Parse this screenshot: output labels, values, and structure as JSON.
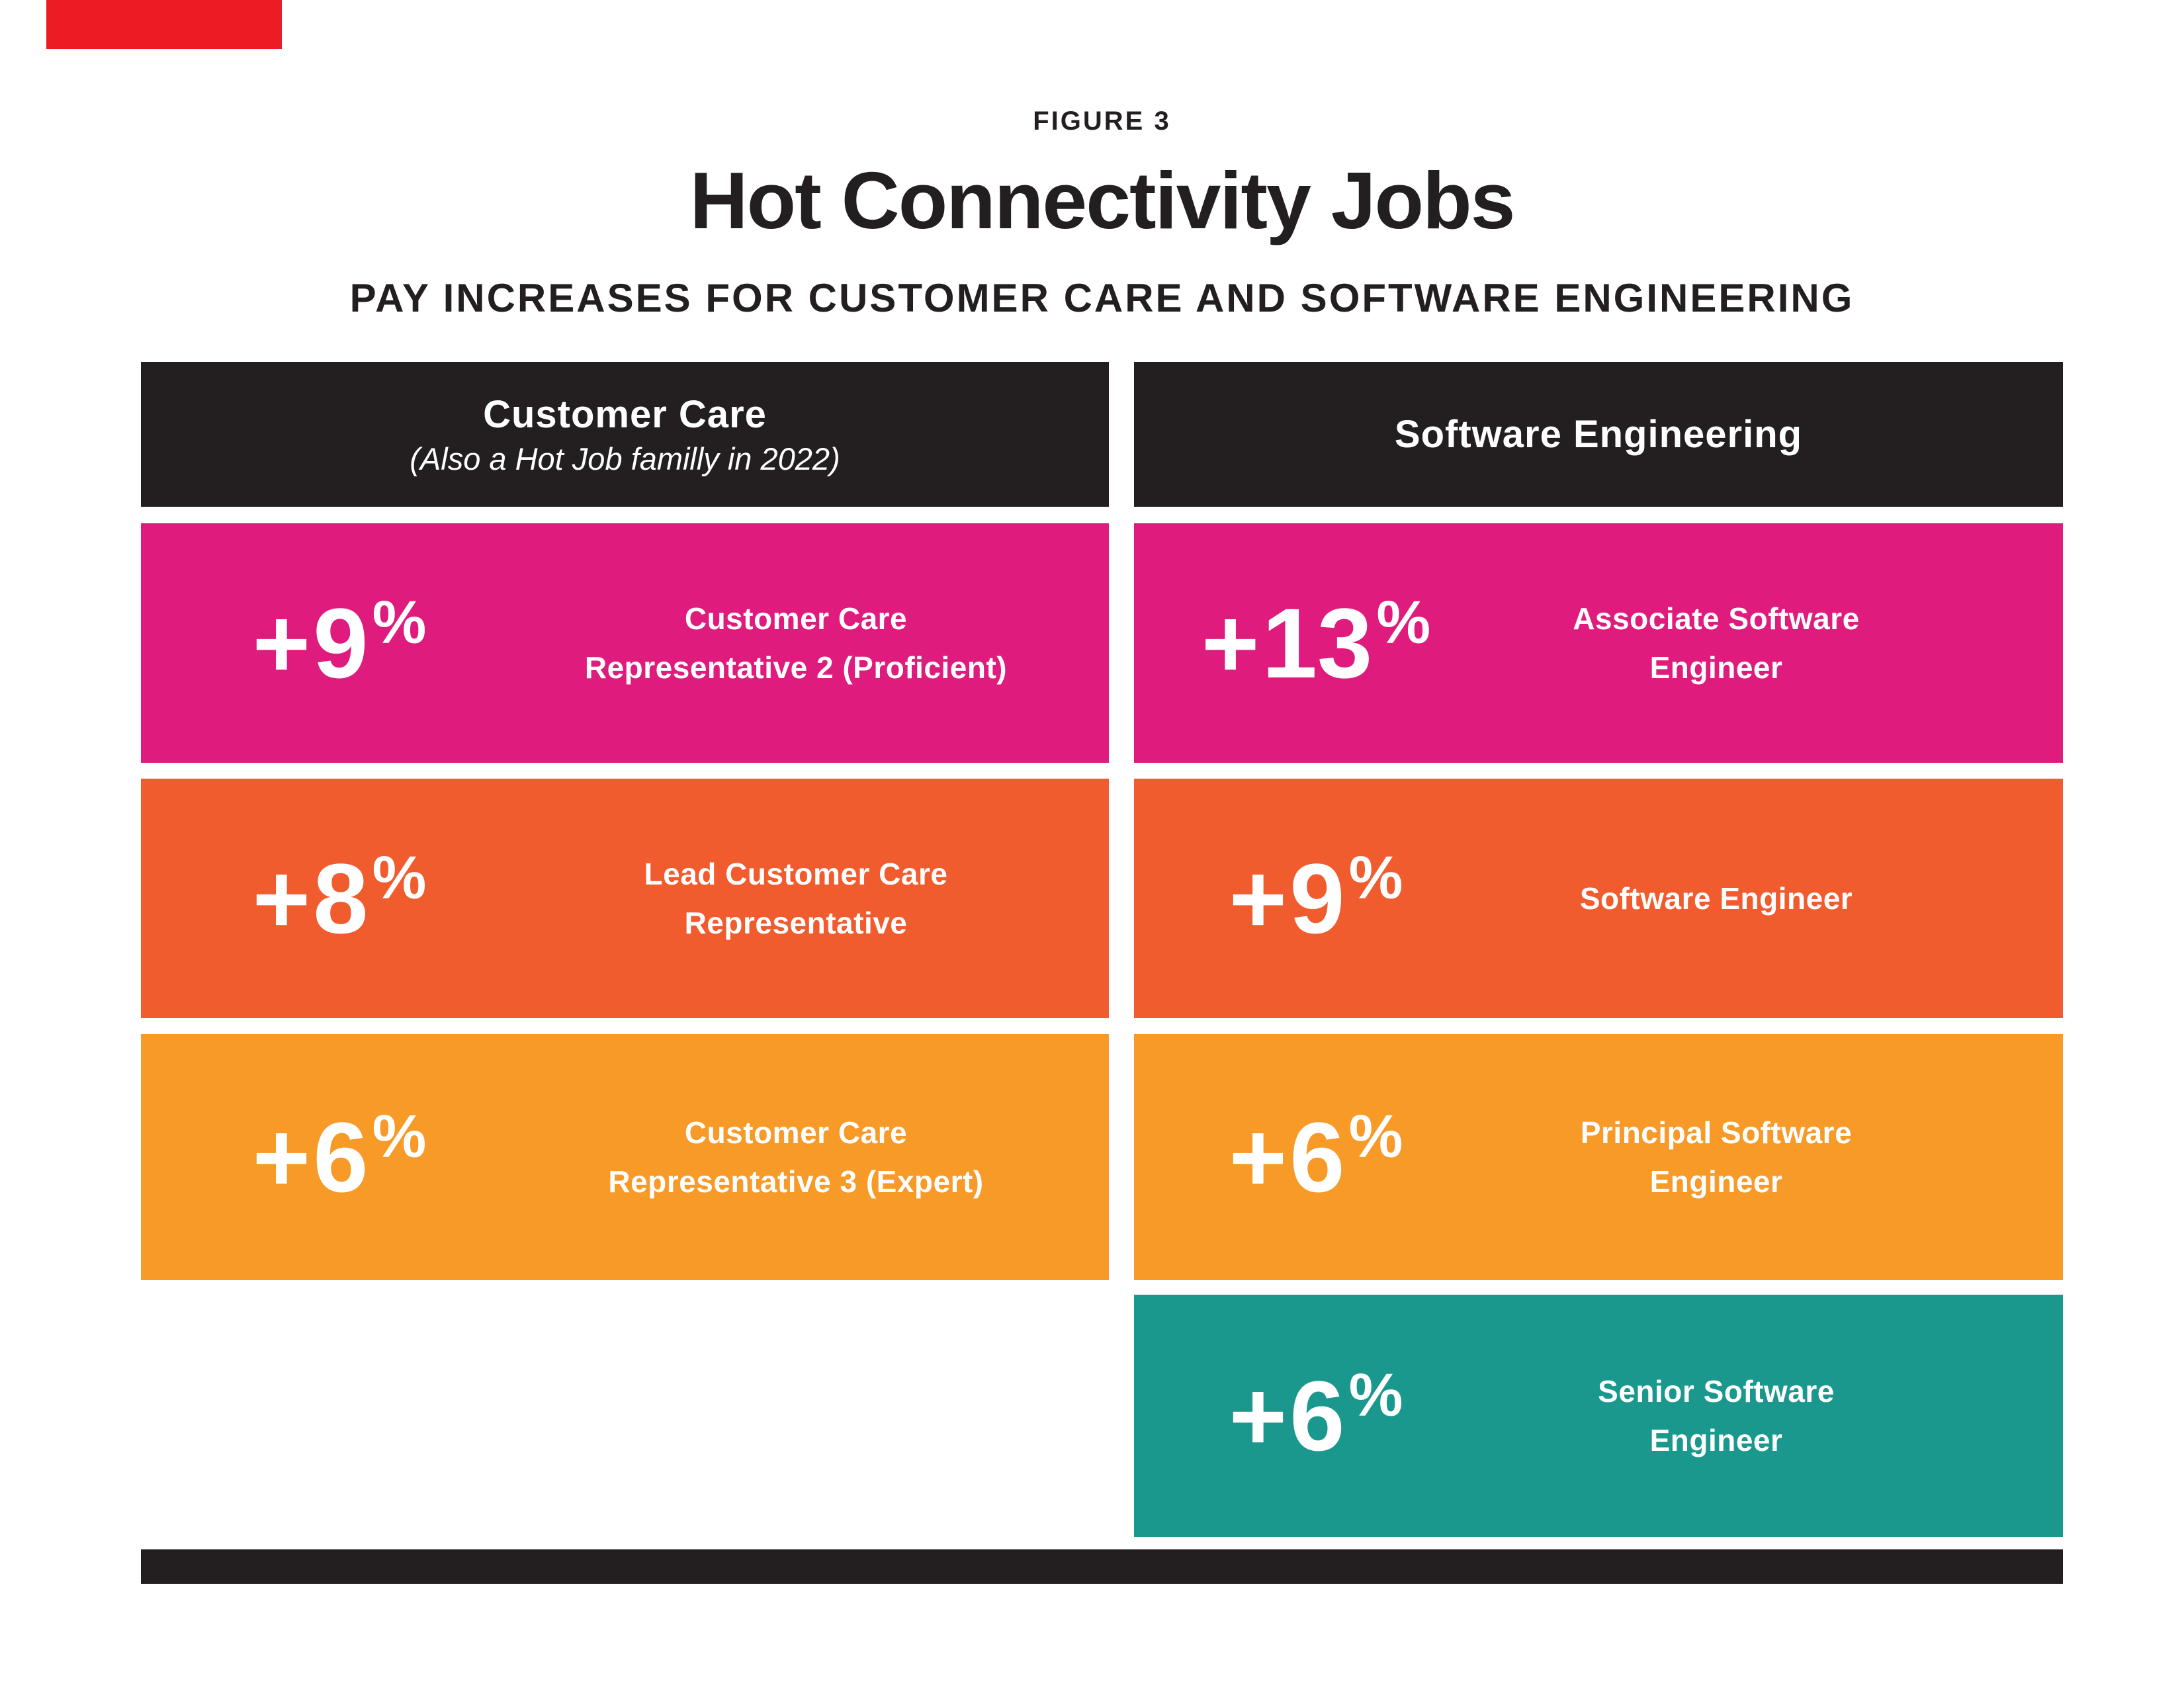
{
  "figure_label": "FIGURE 3",
  "title": "Hot Connectivity Jobs",
  "subtitle": "PAY INCREASES FOR CUSTOMER CARE AND SOFTWARE ENGINEERING",
  "colors": {
    "ink_black": "#231F20",
    "pink": "#E01B7E",
    "orange": "#F15C2F",
    "amber": "#F79A28",
    "teal": "#1A988D",
    "corner_red": "#EC1C24",
    "text_on_color": "#FFFFFF"
  },
  "columns": [
    {
      "header": {
        "title": "Customer Care",
        "note": "(Also a Hot Job familly in 2022)"
      },
      "rows": [
        {
          "plus": "+",
          "value": "9",
          "unit": "%",
          "line1": "Customer Care",
          "line2": "Representative 2 (Proficient)"
        },
        {
          "plus": "+",
          "value": "8",
          "unit": "%",
          "line1": "Lead Customer Care",
          "line2": "Representative"
        },
        {
          "plus": "+",
          "value": "6",
          "unit": "%",
          "line1": "Customer Care",
          "line2": "Representative 3 (Expert)"
        }
      ]
    },
    {
      "header": {
        "title": "Software Engineering",
        "note": ""
      },
      "rows": [
        {
          "plus": "+",
          "value": "13",
          "unit": "%",
          "line1": "Associate Software",
          "line2": "Engineer"
        },
        {
          "plus": "+",
          "value": "9",
          "unit": "%",
          "line1": "Software Engineer",
          "line2": ""
        },
        {
          "plus": "+",
          "value": "6",
          "unit": "%",
          "line1": "Principal Software",
          "line2": "Engineer"
        },
        {
          "plus": "+",
          "value": "6",
          "unit": "%",
          "line1": "Senior Software",
          "line2": "Engineer"
        }
      ]
    }
  ],
  "chart_data": {
    "type": "table",
    "figure_label": "FIGURE 3",
    "title": "Hot Connectivity Jobs",
    "subtitle": "PAY INCREASES FOR CUSTOMER CARE AND SOFTWARE ENGINEERING",
    "groups": [
      {
        "name": "Customer Care",
        "note": "(Also a Hot Job familly in 2022)",
        "items": [
          {
            "job": "Customer Care Representative 2 (Proficient)",
            "pay_increase_pct": 9
          },
          {
            "job": "Lead Customer Care Representative",
            "pay_increase_pct": 8
          },
          {
            "job": "Customer Care Representative 3 (Expert)",
            "pay_increase_pct": 6
          }
        ]
      },
      {
        "name": "Software Engineering",
        "note": "",
        "items": [
          {
            "job": "Associate Software Engineer",
            "pay_increase_pct": 13
          },
          {
            "job": "Software Engineer",
            "pay_increase_pct": 9
          },
          {
            "job": "Principal Software Engineer",
            "pay_increase_pct": 6
          },
          {
            "job": "Senior Software Engineer",
            "pay_increase_pct": 6
          }
        ]
      }
    ]
  }
}
